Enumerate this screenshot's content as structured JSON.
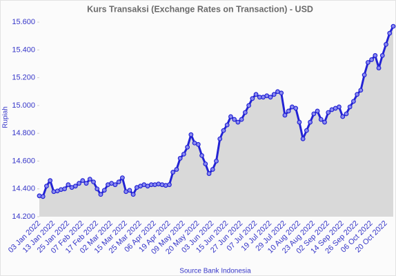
{
  "chart_data": {
    "type": "area-line",
    "title": "Kurs Transaksi (Exchange Rates on Transaction) - USD",
    "ylabel": "Rupiah",
    "xlabel": "Source Bank Indonesia",
    "color": "#2323d4",
    "ylim": [
      14200,
      15660
    ],
    "yticks": [
      {
        "value": 14200,
        "label": "14.200"
      },
      {
        "value": 14400,
        "label": "14.400"
      },
      {
        "value": 14600,
        "label": "14.600"
      },
      {
        "value": 14800,
        "label": "14.800"
      },
      {
        "value": 15000,
        "label": "15.000"
      },
      {
        "value": 15200,
        "label": "15.200"
      },
      {
        "value": 15400,
        "label": "15.400"
      },
      {
        "value": 15600,
        "label": "15.600"
      }
    ],
    "categories": [
      "03 Jan 2022",
      null,
      null,
      null,
      "13 Jan 2022",
      null,
      null,
      null,
      "25 Jan 2022",
      null,
      null,
      null,
      "07 Feb 2022",
      null,
      null,
      null,
      "17 Feb 2022",
      null,
      null,
      null,
      "02 Mar 2022",
      null,
      null,
      null,
      "15 Mar 2022",
      null,
      null,
      null,
      "25 Mar 2022",
      null,
      null,
      null,
      "06 Apr 2022",
      null,
      null,
      null,
      "19 Apr 2022",
      null,
      null,
      null,
      "09 May 2022",
      null,
      null,
      null,
      "20 May 2022",
      null,
      null,
      null,
      "03 Jun 2022",
      null,
      null,
      null,
      "15 Jun 2022",
      null,
      null,
      null,
      "27 Jun 2022",
      null,
      null,
      null,
      "07 Jul 2022",
      null,
      null,
      null,
      "19 Jul 2022",
      null,
      null,
      null,
      "29 Jul 2022",
      null,
      null,
      null,
      "10 Aug 2022",
      null,
      null,
      null,
      "23 Aug 2022",
      null,
      null,
      null,
      "02 Sep 2022",
      null,
      null,
      null,
      "14 Sep 2022",
      null,
      null,
      null,
      "26 Sep 2022",
      null,
      null,
      null,
      "06 Oct 2022",
      null,
      null,
      null,
      "20 Oct 2022",
      null,
      null
    ],
    "values": [
      14350,
      14345,
      14420,
      14460,
      14380,
      14385,
      14395,
      14400,
      14430,
      14410,
      14420,
      14440,
      14460,
      14440,
      14470,
      14450,
      14400,
      14360,
      14390,
      14430,
      14440,
      14430,
      14450,
      14480,
      14380,
      14390,
      14360,
      14410,
      14420,
      14430,
      14420,
      14430,
      14430,
      14435,
      14430,
      14425,
      14430,
      14520,
      14540,
      14620,
      14650,
      14700,
      14790,
      14730,
      14720,
      14640,
      14580,
      14510,
      14540,
      14600,
      14760,
      14820,
      14860,
      14920,
      14900,
      14880,
      14900,
      14950,
      15000,
      15050,
      15080,
      15060,
      15060,
      15070,
      15060,
      15080,
      15100,
      15090,
      14930,
      14960,
      14990,
      14980,
      14880,
      14760,
      14820,
      14880,
      14940,
      14960,
      14900,
      14880,
      14950,
      14970,
      14980,
      14990,
      14920,
      14940,
      14990,
      15030,
      15080,
      15110,
      15220,
      15310,
      15330,
      15360,
      15270,
      15360,
      15440,
      15520,
      15570
    ]
  }
}
